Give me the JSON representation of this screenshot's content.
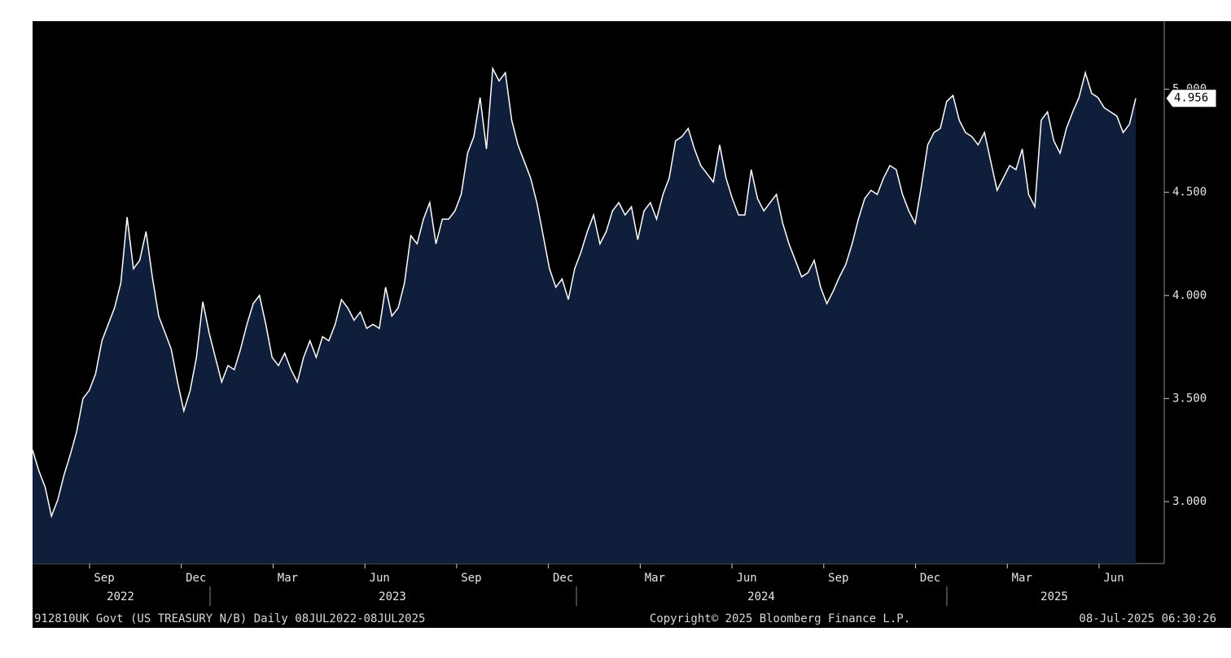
{
  "chart_data": {
    "type": "area",
    "color": "#0f1e3a",
    "line_color": "#ffffff",
    "values": [
      3.25,
      3.15,
      3.07,
      2.93,
      3.01,
      3.13,
      3.23,
      3.34,
      3.5,
      3.54,
      3.62,
      3.78,
      3.86,
      3.94,
      4.06,
      4.38,
      4.13,
      4.17,
      4.31,
      4.09,
      3.9,
      3.82,
      3.74,
      3.58,
      3.44,
      3.54,
      3.7,
      3.97,
      3.82,
      3.7,
      3.58,
      3.66,
      3.64,
      3.74,
      3.86,
      3.96,
      4.0,
      3.86,
      3.7,
      3.66,
      3.72,
      3.64,
      3.58,
      3.7,
      3.78,
      3.7,
      3.8,
      3.78,
      3.86,
      3.98,
      3.94,
      3.88,
      3.92,
      3.84,
      3.86,
      3.84,
      4.04,
      3.9,
      3.94,
      4.06,
      4.29,
      4.25,
      4.37,
      4.45,
      4.25,
      4.37,
      4.37,
      4.41,
      4.49,
      4.69,
      4.77,
      4.96,
      4.71,
      5.1,
      5.04,
      5.08,
      4.85,
      4.73,
      4.65,
      4.57,
      4.45,
      4.29,
      4.13,
      4.04,
      4.08,
      3.98,
      4.13,
      4.21,
      4.31,
      4.39,
      4.25,
      4.31,
      4.41,
      4.45,
      4.39,
      4.43,
      4.27,
      4.41,
      4.45,
      4.37,
      4.49,
      4.57,
      4.75,
      4.77,
      4.81,
      4.71,
      4.63,
      4.59,
      4.55,
      4.73,
      4.57,
      4.47,
      4.39,
      4.39,
      4.61,
      4.47,
      4.41,
      4.45,
      4.49,
      4.35,
      4.25,
      4.17,
      4.09,
      4.11,
      4.17,
      4.04,
      3.96,
      4.02,
      4.09,
      4.15,
      4.25,
      4.37,
      4.47,
      4.51,
      4.49,
      4.57,
      4.63,
      4.61,
      4.49,
      4.41,
      4.35,
      4.53,
      4.73,
      4.79,
      4.81,
      4.94,
      4.97,
      4.85,
      4.79,
      4.77,
      4.73,
      4.79,
      4.65,
      4.51,
      4.57,
      4.63,
      4.61,
      4.71,
      4.49,
      4.43,
      4.85,
      4.89,
      4.75,
      4.69,
      4.81,
      4.89,
      4.96,
      5.08,
      4.98,
      4.96,
      4.91,
      4.89,
      4.87,
      4.79,
      4.83,
      4.956
    ],
    "ylim": [
      2.7,
      5.33
    ],
    "yticks": [
      {
        "value": 3,
        "label": "3.000"
      },
      {
        "value": 3.5,
        "label": "3.500"
      },
      {
        "value": 4,
        "label": "4.000"
      },
      {
        "value": 4.5,
        "label": "4.500"
      },
      {
        "value": 5,
        "label": "5.000"
      }
    ],
    "months": [
      "Sep",
      "Dec",
      "Mar",
      "Jun",
      "Sep",
      "Dec",
      "Mar",
      "Jun",
      "Sep",
      "Dec",
      "Mar",
      "Jun"
    ],
    "years": [
      "2022",
      "2023",
      "2024",
      "2025"
    ],
    "footer": {
      "left": "912810UK Govt (US TREASURY N/B)  Daily 08JUL2022-08JUL2025",
      "center": "Copyright© 2025 Bloomberg Finance L.P.",
      "right": "08-Jul-2025 06:30:26"
    }
  }
}
